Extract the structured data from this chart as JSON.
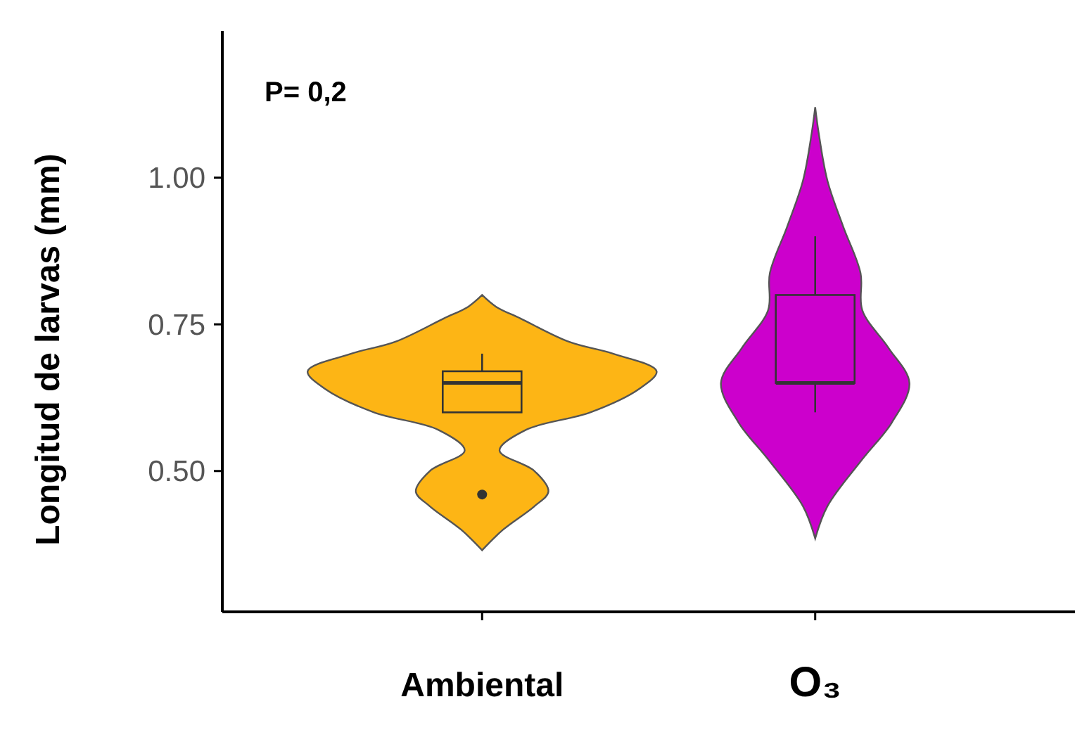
{
  "chart_data": {
    "type": "box",
    "ylabel": "Longitud de larvas (mm)",
    "categories": [
      "Ambiental",
      "O₃"
    ],
    "colors": [
      "#fdb515",
      "#cc00cc"
    ],
    "boxes": [
      {
        "low": 0.6,
        "q1": 0.6,
        "median": 0.65,
        "q3": 0.67,
        "high": 0.7,
        "outliers": [
          0.46
        ]
      },
      {
        "low": 0.6,
        "q1": 0.65,
        "median": 0.65,
        "q3": 0.8,
        "high": 0.9
      }
    ],
    "ylim": [
      0.26,
      1.25
    ],
    "yticks": [
      {
        "value": 0.5,
        "label": "0.50"
      },
      {
        "value": 0.75,
        "label": "0.75"
      },
      {
        "value": 1,
        "label": "1.00"
      }
    ],
    "annotations": [
      "P= 0,2"
    ]
  }
}
